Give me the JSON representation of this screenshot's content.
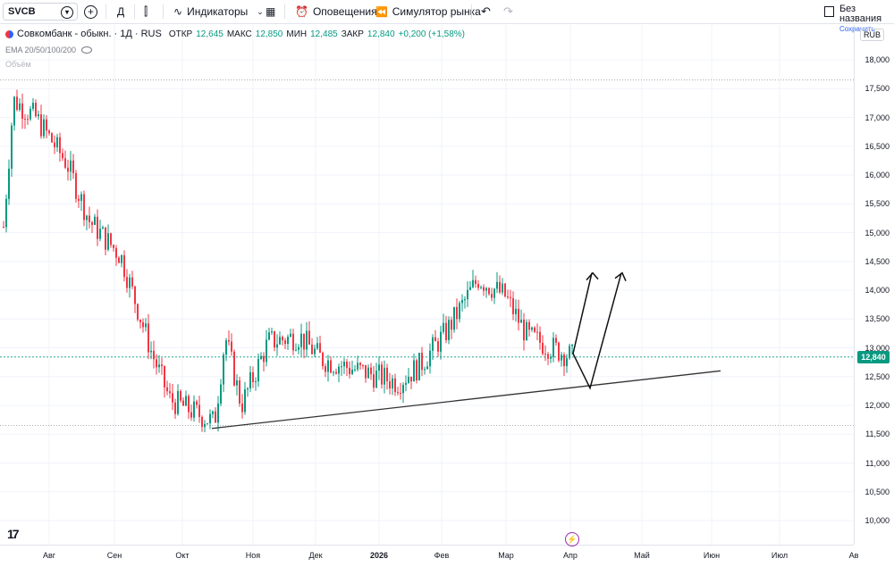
{
  "toolbar": {
    "symbol": "SVCB",
    "interval": "Д",
    "indicators_label": "Индикаторы",
    "alerts_label": "Оповещения",
    "replay_label": "Симулятор рынка",
    "layout_name": "Без названия",
    "save_label": "Сохранить"
  },
  "legend": {
    "name": "Совкомбанк - обыкн. · 1Д · RUS",
    "open_label": "ОТКР",
    "open": "12,645",
    "high_label": "МАКС",
    "high": "12,850",
    "low_label": "МИН",
    "low": "12,485",
    "close_label": "ЗАКР",
    "close": "12,840",
    "change": "+0,200 (+1,58%)",
    "ema": "EMA 20/50/100/200",
    "volume": "Объём"
  },
  "yaxis": {
    "currency": "RUB",
    "current_price": "12,840",
    "ticks": [
      "18,000",
      "17,500",
      "17,000",
      "16,500",
      "16,000",
      "15,500",
      "15,000",
      "14,500",
      "14,000",
      "13,500",
      "13,000",
      "12,500",
      "12,000",
      "11,500",
      "11,000",
      "10,500",
      "10,000"
    ]
  },
  "xaxis": {
    "ticks": [
      "Авг",
      "Сен",
      "Окт",
      "Ноя",
      "Дек",
      "2026",
      "Фев",
      "Мар",
      "Апр",
      "Май",
      "Июн",
      "Июл",
      "Ав"
    ]
  },
  "colors": {
    "up": "#089981",
    "down": "#f23645",
    "accent": "#2962ff"
  },
  "chart_data": {
    "type": "candlestick",
    "approx_close_path": [
      {
        "x": "Июл",
        "y": 15.1
      },
      {
        "x": "Июл",
        "y": 17.3
      },
      {
        "x": "Авг",
        "y": 17.0
      },
      {
        "x": "Авг",
        "y": 16.2
      },
      {
        "x": "Сен",
        "y": 15.2
      },
      {
        "x": "Сен",
        "y": 14.6
      },
      {
        "x": "Окт",
        "y": 12.9
      },
      {
        "x": "Окт",
        "y": 12.1
      },
      {
        "x": "Окт",
        "y": 11.7
      },
      {
        "x": "Окт",
        "y": 13.2
      },
      {
        "x": "Ноя",
        "y": 12.0
      },
      {
        "x": "Ноя",
        "y": 13.1
      },
      {
        "x": "Дек",
        "y": 13.2
      },
      {
        "x": "Дек",
        "y": 12.8
      },
      {
        "x": "2026",
        "y": 12.4
      },
      {
        "x": "2026",
        "y": 12.7
      },
      {
        "x": "Фев",
        "y": 13.3
      },
      {
        "x": "Фев",
        "y": 14.2
      },
      {
        "x": "Мар",
        "y": 13.9
      },
      {
        "x": "Мар",
        "y": 13.2
      },
      {
        "x": "Апр",
        "y": 12.84
      }
    ],
    "ylim": [
      9.8,
      18.2
    ],
    "last_close": 12.84,
    "trendline": {
      "from": {
        "x": "Окт",
        "y": 11.6
      },
      "to": {
        "x": "Май",
        "y": 12.6
      }
    }
  }
}
